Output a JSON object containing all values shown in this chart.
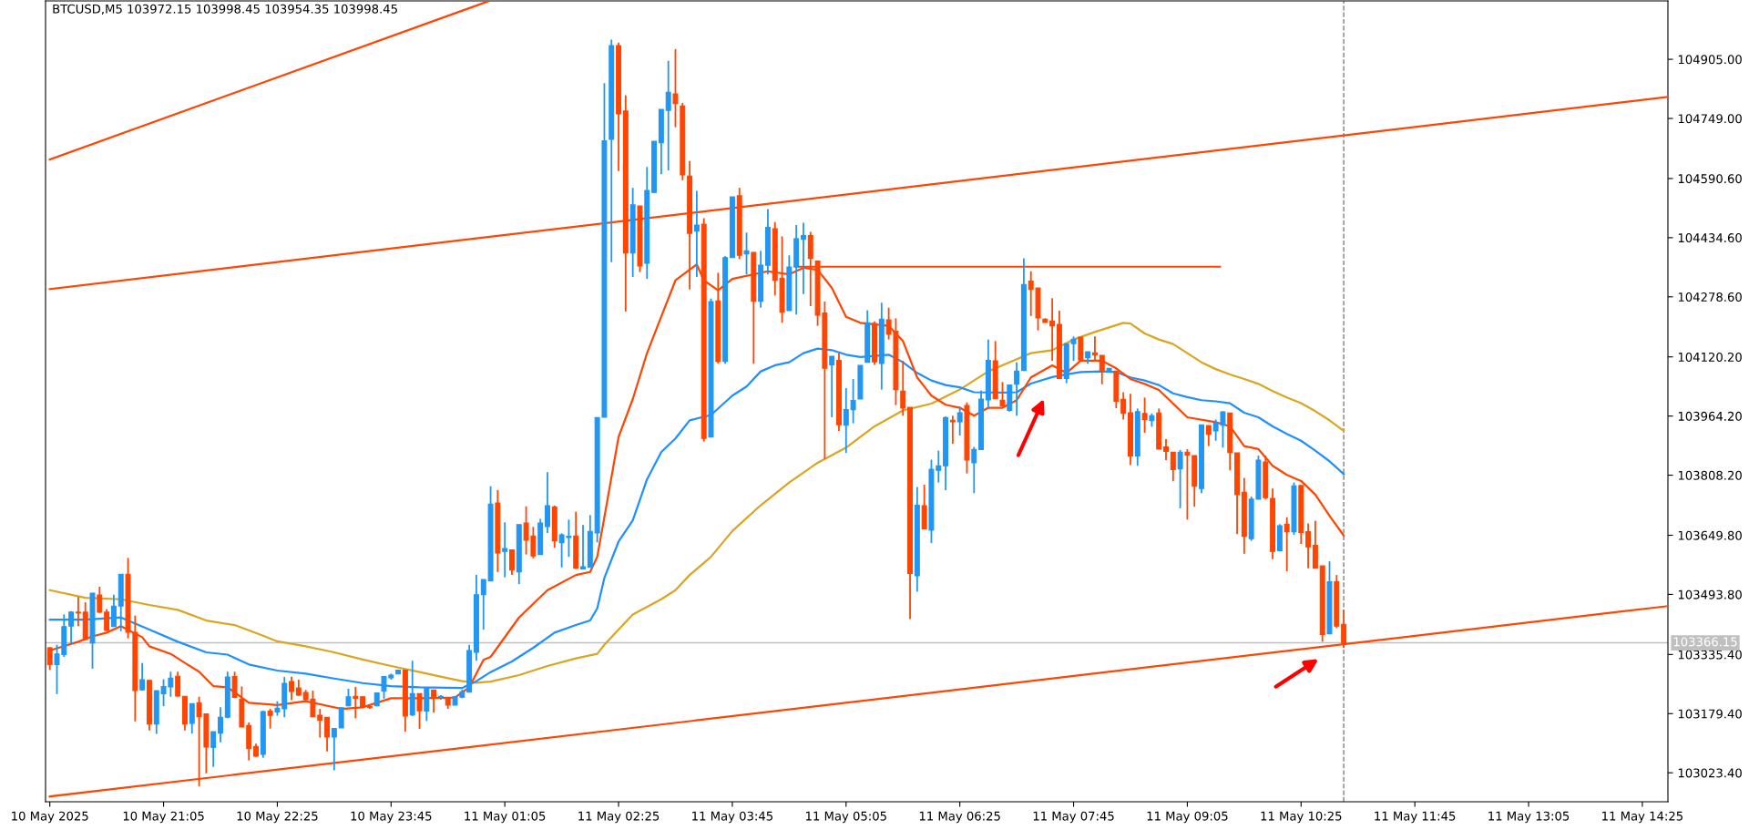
{
  "chart_data": {
    "type": "candlestick",
    "title": "BTCUSD,M5 103972.15 103998.45 103954.35 103998.45",
    "x": [
      "2025-05-10T19:45",
      "2025-05-10T19:50",
      "2025-05-10T19:55",
      "2025-05-10T20:00",
      "2025-05-10T20:05",
      "2025-05-10T20:10",
      "2025-05-10T20:15",
      "2025-05-10T20:20",
      "2025-05-10T20:25",
      "2025-05-10T20:30",
      "2025-05-10T20:35",
      "2025-05-10T20:40",
      "2025-05-10T20:45",
      "2025-05-10T20:50",
      "2025-05-10T20:55",
      "2025-05-10T21:00",
      "2025-05-10T21:05",
      "2025-05-10T21:10",
      "2025-05-10T21:15",
      "2025-05-10T21:20",
      "2025-05-10T21:25",
      "2025-05-10T21:30",
      "2025-05-10T21:35",
      "2025-05-10T21:40",
      "2025-05-10T21:45",
      "2025-05-10T21:50",
      "2025-05-10T21:55",
      "2025-05-10T22:00",
      "2025-05-10T22:05",
      "2025-05-10T22:10",
      "2025-05-10T22:15",
      "2025-05-10T22:20",
      "2025-05-10T22:25",
      "2025-05-10T22:30",
      "2025-05-10T22:35",
      "2025-05-10T22:40",
      "2025-05-10T22:45",
      "2025-05-10T22:50",
      "2025-05-10T22:55",
      "2025-05-10T23:00",
      "2025-05-10T23:05",
      "2025-05-10T23:10",
      "2025-05-10T23:15",
      "2025-05-10T23:20",
      "2025-05-10T23:25",
      "2025-05-10T23:30",
      "2025-05-10T23:35",
      "2025-05-10T23:40",
      "2025-05-10T23:45",
      "2025-05-10T23:50",
      "2025-05-10T23:55",
      "2025-05-11T00:00",
      "2025-05-11T00:05",
      "2025-05-11T00:10",
      "2025-05-11T00:15",
      "2025-05-11T00:20",
      "2025-05-11T00:25",
      "2025-05-11T00:30",
      "2025-05-11T00:35",
      "2025-05-11T00:40",
      "2025-05-11T00:45",
      "2025-05-11T00:50",
      "2025-05-11T00:55",
      "2025-05-11T01:00",
      "2025-05-11T01:05",
      "2025-05-11T01:10",
      "2025-05-11T01:15",
      "2025-05-11T01:20",
      "2025-05-11T01:25",
      "2025-05-11T01:30",
      "2025-05-11T01:35",
      "2025-05-11T01:40",
      "2025-05-11T01:45",
      "2025-05-11T01:50",
      "2025-05-11T01:55",
      "2025-05-11T02:00",
      "2025-05-11T02:05",
      "2025-05-11T02:10",
      "2025-05-11T02:15",
      "2025-05-11T02:20",
      "2025-05-11T02:25",
      "2025-05-11T02:30",
      "2025-05-11T02:35",
      "2025-05-11T02:40",
      "2025-05-11T02:45",
      "2025-05-11T02:50",
      "2025-05-11T02:55",
      "2025-05-11T03:00",
      "2025-05-11T03:05",
      "2025-05-11T03:10",
      "2025-05-11T03:15",
      "2025-05-11T03:20",
      "2025-05-11T03:25",
      "2025-05-11T03:30",
      "2025-05-11T03:35",
      "2025-05-11T03:40",
      "2025-05-11T03:45",
      "2025-05-11T03:50",
      "2025-05-11T03:55",
      "2025-05-11T04:00",
      "2025-05-11T04:05",
      "2025-05-11T04:10",
      "2025-05-11T04:15",
      "2025-05-11T04:20",
      "2025-05-11T04:25",
      "2025-05-11T04:30",
      "2025-05-11T04:35",
      "2025-05-11T04:40",
      "2025-05-11T04:45",
      "2025-05-11T04:50",
      "2025-05-11T04:55",
      "2025-05-11T05:00",
      "2025-05-11T05:05",
      "2025-05-11T05:10",
      "2025-05-11T05:15",
      "2025-05-11T05:20",
      "2025-05-11T05:25",
      "2025-05-11T05:30",
      "2025-05-11T05:35",
      "2025-05-11T05:40",
      "2025-05-11T05:45",
      "2025-05-11T05:50",
      "2025-05-11T05:55",
      "2025-05-11T06:00",
      "2025-05-11T06:05",
      "2025-05-11T06:10",
      "2025-05-11T06:15",
      "2025-05-11T06:20",
      "2025-05-11T06:25",
      "2025-05-11T06:30",
      "2025-05-11T06:35",
      "2025-05-11T06:40",
      "2025-05-11T06:45",
      "2025-05-11T06:50",
      "2025-05-11T06:55",
      "2025-05-11T07:00",
      "2025-05-11T07:05",
      "2025-05-11T07:10",
      "2025-05-11T07:15",
      "2025-05-11T07:20",
      "2025-05-11T07:25",
      "2025-05-11T07:30",
      "2025-05-11T07:35",
      "2025-05-11T07:40",
      "2025-05-11T07:45",
      "2025-05-11T07:50",
      "2025-05-11T07:55",
      "2025-05-11T08:00",
      "2025-05-11T08:05",
      "2025-05-11T08:10",
      "2025-05-11T08:15",
      "2025-05-11T08:20",
      "2025-05-11T08:25",
      "2025-05-11T08:30",
      "2025-05-11T08:35",
      "2025-05-11T08:40",
      "2025-05-11T08:45",
      "2025-05-11T08:50",
      "2025-05-11T08:55",
      "2025-05-11T09:00",
      "2025-05-11T09:05",
      "2025-05-11T09:10",
      "2025-05-11T09:15",
      "2025-05-11T09:20",
      "2025-05-11T09:25",
      "2025-05-11T09:30",
      "2025-05-11T09:35",
      "2025-05-11T09:40",
      "2025-05-11T09:45",
      "2025-05-11T09:50",
      "2025-05-11T09:55",
      "2025-05-11T10:00",
      "2025-05-11T10:05",
      "2025-05-11T10:10",
      "2025-05-11T10:15",
      "2025-05-11T10:20",
      "2025-05-11T10:25",
      "2025-05-11T10:30",
      "2025-05-11T10:35",
      "2025-05-11T10:40",
      "2025-05-11T10:45",
      "2025-05-11T10:50",
      "2025-05-11T10:55"
    ],
    "ohlc": [
      [
        103353,
        103355,
        103295,
        103309
      ],
      [
        103309,
        103361,
        103231,
        103337
      ],
      [
        103335,
        103441,
        103329,
        103409
      ],
      [
        103410,
        103450,
        103362,
        103447
      ],
      [
        103447,
        103487,
        103410,
        103445
      ],
      [
        103447,
        103473,
        103375,
        103375
      ],
      [
        103366,
        103497,
        103298,
        103497
      ],
      [
        103492,
        103514,
        103445,
        103447
      ],
      [
        103447,
        103455,
        103397,
        103399
      ],
      [
        103409,
        103493,
        103409,
        103463
      ],
      [
        103463,
        103547,
        103397,
        103547
      ],
      [
        103547,
        103590,
        103378,
        103394
      ],
      [
        103394,
        103438,
        103159,
        103240
      ],
      [
        103242,
        103313,
        103240,
        103269
      ],
      [
        103267,
        103267,
        103135,
        103152
      ],
      [
        103152,
        103240,
        103126,
        103240
      ],
      [
        103232,
        103270,
        103199,
        103251
      ],
      [
        103250,
        103290,
        103224,
        103273
      ],
      [
        103278,
        103290,
        103224,
        103226
      ],
      [
        103225,
        103225,
        103135,
        103152
      ],
      [
        103154,
        103206,
        103127,
        103206
      ],
      [
        103208,
        103224,
        102988,
        103171
      ],
      [
        103179,
        103179,
        103022,
        103091
      ],
      [
        103090,
        103132,
        103039,
        103132
      ],
      [
        103128,
        103196,
        103104,
        103170
      ],
      [
        103170,
        103290,
        103167,
        103276
      ],
      [
        103277,
        103290,
        103220,
        103222
      ],
      [
        103218,
        103251,
        103144,
        103144
      ],
      [
        103148,
        103156,
        103056,
        103087
      ],
      [
        103093,
        103100,
        103066,
        103067
      ],
      [
        103072,
        103187,
        103063,
        103185
      ],
      [
        103186,
        103192,
        103140,
        103175
      ],
      [
        103184,
        103212,
        103174,
        103194
      ],
      [
        103192,
        103276,
        103170,
        103259
      ],
      [
        103264,
        103277,
        103215,
        103238
      ],
      [
        103247,
        103269,
        103226,
        103228
      ],
      [
        103235,
        103242,
        103214,
        103216
      ],
      [
        103218,
        103240,
        103171,
        103171
      ],
      [
        103175,
        103192,
        103116,
        103162
      ],
      [
        103170,
        103170,
        103080,
        103118
      ],
      [
        103118,
        103140,
        103030,
        103140
      ],
      [
        103142,
        103195,
        103142,
        103195
      ],
      [
        103200,
        103245,
        103199,
        103224
      ],
      [
        103225,
        103250,
        103167,
        103220
      ],
      [
        103224,
        103224,
        103198,
        103198
      ],
      [
        103198,
        103204,
        103192,
        103195
      ],
      [
        103200,
        103234,
        103199,
        103234
      ],
      [
        103239,
        103277,
        103219,
        103277
      ],
      [
        103274,
        103285,
        103269,
        103281
      ],
      [
        103284,
        103294,
        103284,
        103294
      ],
      [
        103294,
        103294,
        103132,
        103173
      ],
      [
        103176,
        103319,
        103173,
        103232
      ],
      [
        103232,
        103232,
        103139,
        103187
      ],
      [
        103186,
        103247,
        103160,
        103247
      ],
      [
        103242,
        103242,
        103182,
        103222
      ],
      [
        103224,
        103228,
        103216,
        103225
      ],
      [
        103219,
        103219,
        103192,
        103202
      ],
      [
        103202,
        103226,
        103202,
        103224
      ],
      [
        103223,
        103243,
        103220,
        103237
      ],
      [
        103236,
        103361,
        103236,
        103346
      ],
      [
        103341,
        103545,
        103319,
        103493
      ],
      [
        103493,
        103533,
        103401,
        103533
      ],
      [
        103529,
        103779,
        103529,
        103732
      ],
      [
        103735,
        103769,
        103553,
        103603
      ],
      [
        103607,
        103684,
        103539,
        103615
      ],
      [
        103611,
        103611,
        103545,
        103558
      ],
      [
        103553,
        103678,
        103521,
        103678
      ],
      [
        103682,
        103726,
        103599,
        103637
      ],
      [
        103648,
        103672,
        103589,
        103595
      ],
      [
        103599,
        103693,
        103599,
        103682
      ],
      [
        103673,
        103816,
        103656,
        103728
      ],
      [
        103724,
        103728,
        103617,
        103635
      ],
      [
        103630,
        103655,
        103565,
        103651
      ],
      [
        103644,
        103691,
        103593,
        103647
      ],
      [
        103648,
        103712,
        103561,
        103563
      ],
      [
        103561,
        103677,
        103561,
        103567
      ],
      [
        103565,
        103703,
        103565,
        103660
      ],
      [
        103656,
        103960,
        103631,
        103960
      ],
      [
        103961,
        104842,
        103961,
        104690
      ],
      [
        104694,
        104957,
        104370,
        104941
      ],
      [
        104941,
        104949,
        104610,
        104761
      ],
      [
        104769,
        104810,
        104240,
        104394
      ],
      [
        104394,
        104566,
        104331,
        104521
      ],
      [
        104518,
        104518,
        104344,
        104360
      ],
      [
        104367,
        104621,
        104326,
        104559
      ],
      [
        104554,
        104689,
        104552,
        104689
      ],
      [
        104685,
        104773,
        104602,
        104773
      ],
      [
        104770,
        104901,
        104612,
        104818
      ],
      [
        104814,
        104932,
        104726,
        104788
      ],
      [
        104782,
        104790,
        104586,
        104600
      ],
      [
        104597,
        104637,
        104298,
        104446
      ],
      [
        104452,
        104558,
        104331,
        104468
      ],
      [
        104470,
        104486,
        103897,
        103905
      ],
      [
        103909,
        104274,
        103909,
        104266
      ],
      [
        104268,
        104342,
        104103,
        104108
      ],
      [
        104108,
        104386,
        104102,
        104382
      ],
      [
        104382,
        104542,
        104382,
        104542
      ],
      [
        104545,
        104566,
        104378,
        104388
      ],
      [
        104392,
        104448,
        104338,
        104400
      ],
      [
        104396,
        104396,
        104102,
        104267
      ],
      [
        104267,
        104400,
        104250,
        104362
      ],
      [
        104362,
        104510,
        104338,
        104462
      ],
      [
        104458,
        104476,
        104282,
        104322
      ],
      [
        104328,
        104438,
        104210,
        104238
      ],
      [
        104242,
        104388,
        104242,
        104357
      ],
      [
        104357,
        104468,
        104232,
        104432
      ],
      [
        104430,
        104474,
        104286,
        104440
      ],
      [
        104440,
        104450,
        104254,
        104380
      ],
      [
        104373,
        104373,
        104202,
        104230
      ],
      [
        104236,
        104266,
        103851,
        104090
      ],
      [
        104099,
        104122,
        103961,
        104122
      ],
      [
        104111,
        104130,
        103925,
        103941
      ],
      [
        103940,
        104038,
        103867,
        103981
      ],
      [
        103981,
        104062,
        103945,
        104005
      ],
      [
        104009,
        104098,
        104009,
        104098
      ],
      [
        104106,
        104243,
        104106,
        104210
      ],
      [
        104208,
        104214,
        104099,
        104107
      ],
      [
        104103,
        104263,
        104034,
        104220
      ],
      [
        104218,
        104250,
        104166,
        104180
      ],
      [
        104188,
        104222,
        103993,
        104034
      ],
      [
        104030,
        104110,
        103965,
        103985
      ],
      [
        103987,
        103987,
        103429,
        103549
      ],
      [
        103543,
        103777,
        103501,
        103729
      ],
      [
        103728,
        103783,
        103667,
        103667
      ],
      [
        103663,
        103849,
        103629,
        103824
      ],
      [
        103821,
        103873,
        103789,
        103833
      ],
      [
        103833,
        103963,
        103769,
        103960
      ],
      [
        103953,
        103965,
        103891,
        103949
      ],
      [
        103949,
        103989,
        103913,
        103973
      ],
      [
        103992,
        104000,
        103813,
        103848
      ],
      [
        103841,
        103883,
        103761,
        103876
      ],
      [
        103876,
        104032,
        103876,
        104009
      ],
      [
        104007,
        104166,
        103985,
        104111
      ],
      [
        104110,
        104162,
        104010,
        104010
      ],
      [
        104006,
        104054,
        103990,
        103991
      ],
      [
        103979,
        104046,
        103976,
        104046
      ],
      [
        104048,
        104106,
        103965,
        104083
      ],
      [
        104084,
        104380,
        104084,
        104311
      ],
      [
        104320,
        104346,
        104228,
        104298
      ],
      [
        104302,
        104302,
        104190,
        104223
      ],
      [
        104220,
        104222,
        104211,
        104211
      ],
      [
        104215,
        104275,
        104110,
        104202
      ],
      [
        104206,
        104242,
        104063,
        104063
      ],
      [
        104063,
        104155,
        104051,
        104155
      ],
      [
        104155,
        104174,
        104110,
        104167
      ],
      [
        104172,
        104172,
        104110,
        104112
      ],
      [
        104118,
        104134,
        104102,
        104134
      ],
      [
        104131,
        104174,
        104110,
        104125
      ],
      [
        104124,
        104124,
        104048,
        104082
      ],
      [
        104082,
        104091,
        104082,
        104090
      ],
      [
        104083,
        104083,
        103985,
        104003
      ],
      [
        104008,
        104027,
        103955,
        103971
      ],
      [
        103973,
        104023,
        103835,
        103859
      ],
      [
        103859,
        103984,
        103833,
        103976
      ],
      [
        103971,
        104013,
        103920,
        103955
      ],
      [
        103952,
        103971,
        103936,
        103965
      ],
      [
        103972,
        103984,
        103877,
        103877
      ],
      [
        103883,
        103903,
        103848,
        103871
      ],
      [
        103869,
        103869,
        103792,
        103823
      ],
      [
        103825,
        103875,
        103721,
        103869
      ],
      [
        103869,
        103877,
        103691,
        103861
      ],
      [
        103860,
        103860,
        103725,
        103779
      ],
      [
        103773,
        103941,
        103761,
        103941
      ],
      [
        103939,
        103939,
        103885,
        103916
      ],
      [
        103925,
        103955,
        103899,
        103945
      ],
      [
        103940,
        103977,
        103881,
        103975
      ],
      [
        103972,
        103972,
        103821,
        103868
      ],
      [
        103867,
        103867,
        103653,
        103757
      ],
      [
        103763,
        103801,
        103601,
        103647
      ],
      [
        103641,
        103752,
        103635,
        103745
      ],
      [
        103745,
        103860,
        103745,
        103848
      ],
      [
        103843,
        103860,
        103744,
        103749
      ],
      [
        103747,
        103773,
        103587,
        103607
      ],
      [
        103609,
        103679,
        103609,
        103675
      ],
      [
        103679,
        103697,
        103555,
        103659
      ],
      [
        103659,
        103789,
        103651,
        103780
      ],
      [
        103781,
        103781,
        103627,
        103657
      ],
      [
        103659,
        103681,
        103563,
        103619
      ],
      [
        103623,
        103688,
        103563,
        103563
      ],
      [
        103569,
        103569,
        103369,
        103388
      ],
      [
        103390,
        103581,
        103390,
        103527
      ],
      [
        103527,
        103545,
        103405,
        103410
      ],
      [
        103415,
        103453,
        103353,
        103366
      ]
    ],
    "colors": [
      "#ff4500",
      "#2196f3",
      "#2196f3",
      "#2196f3",
      "#ff4500",
      "#ff4500",
      "#2196f3",
      "#ff4500",
      "#ff4500",
      "#2196f3",
      "#2196f3",
      "#ff4500",
      "#ff4500",
      "#2196f3",
      "#ff4500",
      "#2196f3",
      "#2196f3",
      "#2196f3",
      "#ff4500",
      "#ff4500",
      "#2196f3",
      "#ff4500",
      "#ff4500",
      "#2196f3",
      "#2196f3",
      "#2196f3",
      "#ff4500",
      "#ff4500",
      "#ff4500",
      "#ff4500",
      "#2196f3",
      "#ff4500",
      "#2196f3",
      "#2196f3",
      "#ff4500",
      "#ff4500",
      "#ff4500",
      "#ff4500",
      "#ff4500",
      "#ff4500",
      "#2196f3",
      "#2196f3",
      "#2196f3",
      "#ff4500",
      "#ff4500",
      "#ff4500",
      "#2196f3",
      "#2196f3",
      "#2196f3",
      "#2196f3",
      "#ff4500",
      "#2196f3",
      "#ff4500",
      "#2196f3",
      "#ff4500",
      "#2196f3",
      "#ff4500",
      "#2196f3",
      "#2196f3",
      "#2196f3",
      "#2196f3",
      "#2196f3",
      "#2196f3",
      "#ff4500",
      "#2196f3",
      "#ff4500",
      "#2196f3",
      "#ff4500",
      "#ff4500",
      "#2196f3",
      "#2196f3",
      "#ff4500",
      "#2196f3",
      "#2196f3",
      "#ff4500",
      "#2196f3",
      "#2196f3",
      "#2196f3",
      "#2196f3",
      "#2196f3",
      "#ff4500",
      "#ff4500",
      "#2196f3",
      "#ff4500",
      "#2196f3",
      "#2196f3",
      "#2196f3",
      "#2196f3",
      "#ff4500",
      "#ff4500",
      "#ff4500",
      "#2196f3",
      "#ff4500",
      "#2196f3",
      "#ff4500",
      "#2196f3",
      "#2196f3",
      "#ff4500",
      "#2196f3",
      "#ff4500",
      "#2196f3",
      "#2196f3",
      "#ff4500",
      "#ff4500",
      "#2196f3",
      "#2196f3",
      "#2196f3",
      "#ff4500",
      "#ff4500",
      "#ff4500",
      "#2196f3",
      "#ff4500",
      "#2196f3",
      "#2196f3",
      "#2196f3",
      "#2196f3",
      "#ff4500",
      "#2196f3",
      "#ff4500",
      "#ff4500",
      "#ff4500",
      "#ff4500",
      "#2196f3",
      "#ff4500",
      "#2196f3",
      "#2196f3",
      "#2196f3",
      "#ff4500",
      "#2196f3",
      "#ff4500",
      "#2196f3",
      "#2196f3",
      "#2196f3",
      "#ff4500",
      "#ff4500",
      "#2196f3",
      "#2196f3",
      "#2196f3",
      "#ff4500",
      "#ff4500",
      "#ff4500",
      "#ff4500",
      "#ff4500",
      "#2196f3",
      "#2196f3",
      "#ff4500",
      "#2196f3",
      "#ff4500",
      "#ff4500",
      "#2196f3",
      "#ff4500",
      "#ff4500",
      "#ff4500",
      "#2196f3",
      "#ff4500",
      "#2196f3",
      "#ff4500",
      "#ff4500",
      "#ff4500",
      "#2196f3",
      "#ff4500",
      "#ff4500",
      "#2196f3",
      "#ff4500",
      "#2196f3",
      "#2196f3",
      "#ff4500",
      "#ff4500",
      "#ff4500",
      "#2196f3",
      "#2196f3",
      "#ff4500",
      "#ff4500",
      "#2196f3",
      "#ff4500",
      "#2196f3",
      "#ff4500",
      "#ff4500",
      "#ff4500",
      "#ff4500",
      "#2196f3",
      "#ff4500",
      "#ff4500"
    ],
    "series": [
      {
        "type": "line",
        "color": "#daa520",
        "x": [
          "2025-05-10T19:45",
          "2025-05-10T20:10",
          "2025-05-10T20:35",
          "2025-05-10T20:55",
          "2025-05-10T21:15",
          "2025-05-10T21:35",
          "2025-05-10T21:55",
          "2025-05-10T22:15",
          "2025-05-10T22:25",
          "2025-05-10T22:45",
          "2025-05-10T23:05",
          "2025-05-10T23:25",
          "2025-05-10T23:45",
          "2025-05-11T00:05",
          "2025-05-11T00:25",
          "2025-05-11T00:35",
          "2025-05-11T00:45",
          "2025-05-11T00:55",
          "2025-05-11T01:15",
          "2025-05-11T01:35",
          "2025-05-11T01:55",
          "2025-05-11T02:10",
          "2025-05-11T02:15",
          "2025-05-11T02:25",
          "2025-05-11T02:35",
          "2025-05-11T02:55",
          "2025-05-11T03:05",
          "2025-05-11T03:15",
          "2025-05-11T03:30",
          "2025-05-11T03:45",
          "2025-05-11T04:05",
          "2025-05-11T04:25",
          "2025-05-11T04:45",
          "2025-05-11T05:05",
          "2025-05-11T05:25",
          "2025-05-11T05:45",
          "2025-05-11T06:05",
          "2025-05-11T06:25",
          "2025-05-11T06:45",
          "2025-05-11T07:05",
          "2025-05-11T07:15",
          "2025-05-11T07:30",
          "2025-05-11T07:45",
          "2025-05-11T08:00",
          "2025-05-11T08:10",
          "2025-05-11T08:20",
          "2025-05-11T08:25",
          "2025-05-11T08:35",
          "2025-05-11T08:45",
          "2025-05-11T08:55",
          "2025-05-11T09:05",
          "2025-05-11T09:15",
          "2025-05-11T09:25",
          "2025-05-11T09:35",
          "2025-05-11T09:45",
          "2025-05-11T09:55",
          "2025-05-11T10:05",
          "2025-05-11T10:15",
          "2025-05-11T10:25",
          "2025-05-11T10:35",
          "2025-05-11T10:45",
          "2025-05-11T10:55"
        ],
        "values": [
          103505,
          103485,
          103481,
          103466,
          103453,
          103425,
          103413,
          103385,
          103370,
          103357,
          103341,
          103322,
          103305,
          103289,
          103273,
          103265,
          103261,
          103264,
          103281,
          103305,
          103325,
          103337,
          103361,
          103401,
          103441,
          103481,
          103505,
          103545,
          103593,
          103661,
          103729,
          103789,
          103841,
          103881,
          103937,
          103979,
          103997,
          104034,
          104082,
          104114,
          104130,
          104138,
          104166,
          104186,
          104198,
          104210,
          104208,
          104182,
          104166,
          104154,
          104130,
          104106,
          104088,
          104074,
          104062,
          104049,
          104030,
          104013,
          103998,
          103977,
          103953,
          103925
        ]
      },
      {
        "type": "line",
        "color": "#1e90ff",
        "x": [
          "2025-05-10T19:45",
          "2025-05-10T20:10",
          "2025-05-10T20:35",
          "2025-05-10T20:55",
          "2025-05-10T21:15",
          "2025-05-10T21:35",
          "2025-05-10T21:50",
          "2025-05-10T22:05",
          "2025-05-10T22:25",
          "2025-05-10T22:45",
          "2025-05-10T23:05",
          "2025-05-10T23:25",
          "2025-05-10T23:45",
          "2025-05-11T00:05",
          "2025-05-11T00:35",
          "2025-05-11T00:45",
          "2025-05-11T00:55",
          "2025-05-11T01:10",
          "2025-05-11T01:25",
          "2025-05-11T01:40",
          "2025-05-11T01:55",
          "2025-05-11T02:05",
          "2025-05-11T02:10",
          "2025-05-11T02:15",
          "2025-05-11T02:25",
          "2025-05-11T02:35",
          "2025-05-11T02:45",
          "2025-05-11T02:55",
          "2025-05-11T03:05",
          "2025-05-11T03:15",
          "2025-05-11T03:30",
          "2025-05-11T03:45",
          "2025-05-11T03:55",
          "2025-05-11T04:05",
          "2025-05-11T04:15",
          "2025-05-11T04:25",
          "2025-05-11T04:35",
          "2025-05-11T04:45",
          "2025-05-11T04:55",
          "2025-05-11T05:05",
          "2025-05-11T05:15",
          "2025-05-11T05:35",
          "2025-05-11T05:45",
          "2025-05-11T05:55",
          "2025-05-11T06:05",
          "2025-05-11T06:15",
          "2025-05-11T06:25",
          "2025-05-11T06:35",
          "2025-05-11T06:55",
          "2025-05-11T07:05",
          "2025-05-11T07:15",
          "2025-05-11T07:30",
          "2025-05-11T07:40",
          "2025-05-11T07:50",
          "2025-05-11T08:05",
          "2025-05-11T08:15",
          "2025-05-11T08:25",
          "2025-05-11T08:35",
          "2025-05-11T08:45",
          "2025-05-11T08:55",
          "2025-05-11T09:05",
          "2025-05-11T09:15",
          "2025-05-11T09:25",
          "2025-05-11T09:35",
          "2025-05-11T09:45",
          "2025-05-11T09:55",
          "2025-05-11T10:05",
          "2025-05-11T10:15",
          "2025-05-11T10:25",
          "2025-05-11T10:35",
          "2025-05-11T10:45",
          "2025-05-11T10:55"
        ],
        "values": [
          103427,
          103427,
          103433,
          103401,
          103369,
          103341,
          103335,
          103309,
          103293,
          103285,
          103272,
          103260,
          103252,
          103249,
          103247,
          103265,
          103289,
          103317,
          103353,
          103393,
          103413,
          103425,
          103457,
          103537,
          103633,
          103689,
          103797,
          103869,
          103905,
          103953,
          103967,
          104018,
          104042,
          104082,
          104098,
          104106,
          104130,
          104142,
          104138,
          104126,
          104120,
          104126,
          104106,
          104078,
          104058,
          104046,
          104040,
          104027,
          104026,
          104027,
          104050,
          104067,
          104074,
          104080,
          104082,
          104080,
          104066,
          104058,
          104046,
          104024,
          104014,
          104006,
          104003,
          103998,
          103973,
          103961,
          103937,
          103917,
          103899,
          103873,
          103845,
          103811
        ]
      },
      {
        "type": "line",
        "color": "#ff4500",
        "x": [
          "2025-05-10T19:45",
          "2025-05-10T20:05",
          "2025-05-10T20:15",
          "2025-05-10T20:25",
          "2025-05-10T20:35",
          "2025-05-10T20:50",
          "2025-05-10T20:55",
          "2025-05-10T21:10",
          "2025-05-10T21:20",
          "2025-05-10T21:30",
          "2025-05-10T21:40",
          "2025-05-10T21:50",
          "2025-05-10T22:05",
          "2025-05-10T22:25",
          "2025-05-10T22:45",
          "2025-05-10T23:10",
          "2025-05-10T23:25",
          "2025-05-10T23:45",
          "2025-05-11T00:05",
          "2025-05-11T00:30",
          "2025-05-11T00:40",
          "2025-05-11T00:50",
          "2025-05-11T00:55",
          "2025-05-11T01:15",
          "2025-05-11T01:35",
          "2025-05-11T01:55",
          "2025-05-11T02:05",
          "2025-05-11T02:10",
          "2025-05-11T02:15",
          "2025-05-11T02:25",
          "2025-05-11T02:35",
          "2025-05-11T02:45",
          "2025-05-11T02:55",
          "2025-05-11T03:05",
          "2025-05-11T03:20",
          "2025-05-11T03:25",
          "2025-05-11T03:35",
          "2025-05-11T03:45",
          "2025-05-11T04:10",
          "2025-05-11T04:25",
          "2025-05-11T04:35",
          "2025-05-11T04:45",
          "2025-05-11T04:55",
          "2025-05-11T05:05",
          "2025-05-11T05:15",
          "2025-05-11T05:35",
          "2025-05-11T05:45",
          "2025-05-11T05:55",
          "2025-05-11T06:05",
          "2025-05-11T06:15",
          "2025-05-11T06:25",
          "2025-05-11T06:35",
          "2025-05-11T06:45",
          "2025-05-11T06:55",
          "2025-05-11T07:05",
          "2025-05-11T07:15",
          "2025-05-11T07:30",
          "2025-05-11T07:40",
          "2025-05-11T07:50",
          "2025-05-11T08:05",
          "2025-05-11T08:15",
          "2025-05-11T08:25",
          "2025-05-11T08:35",
          "2025-05-11T08:45",
          "2025-05-11T08:55",
          "2025-05-11T09:05",
          "2025-05-11T09:25",
          "2025-05-11T09:35",
          "2025-05-11T09:45",
          "2025-05-11T09:55",
          "2025-05-11T10:05",
          "2025-05-11T10:15",
          "2025-05-11T10:25",
          "2025-05-11T10:35",
          "2025-05-11T10:45",
          "2025-05-11T10:55"
        ],
        "values": [
          103346,
          103369,
          103383,
          103393,
          103410,
          103381,
          103357,
          103337,
          103313,
          103290,
          103252,
          103249,
          103208,
          103202,
          103212,
          103192,
          103196,
          103220,
          103220,
          103222,
          103249,
          103321,
          103329,
          103433,
          103505,
          103545,
          103553,
          103593,
          103697,
          103909,
          104009,
          104130,
          104226,
          104322,
          104364,
          104322,
          104296,
          104326,
          104346,
          104338,
          104355,
          104350,
          104302,
          104226,
          104210,
          104202,
          104162,
          104066,
          104018,
          103994,
          103986,
          103965,
          103986,
          103986,
          104006,
          104066,
          104098,
          104078,
          104110,
          104110,
          104090,
          104062,
          104049,
          104033,
          103997,
          103961,
          103948,
          103937,
          103885,
          103877,
          103833,
          103809,
          103793,
          103757,
          103701,
          103649
        ]
      },
      {
        "type": "line",
        "color": "#ff4500",
        "x": [
          "2025-05-10T19:45",
          "2025-05-11T00:54"
        ],
        "values": [
          104641,
          105059
        ]
      },
      {
        "type": "line",
        "color": "#ff4500",
        "x": [
          "2025-05-10T19:45",
          "2025-05-11T14:43"
        ],
        "values": [
          104299,
          104806
        ]
      },
      {
        "type": "line",
        "color": "#ff4500",
        "x": [
          "2025-05-10T19:45",
          "2025-05-11T14:43"
        ],
        "values": [
          102961,
          103463
        ]
      },
      {
        "type": "line",
        "color": "#ff4500",
        "x": [
          "2025-05-11T04:30",
          "2025-05-11T09:28"
        ],
        "values": [
          104358,
          104358
        ]
      }
    ],
    "ref_lines": [
      {
        "axis": "y",
        "value": 103366.15,
        "label": "103366.15",
        "color": "#c0c0c0"
      },
      {
        "axis": "x",
        "value": "2025-05-11T10:55",
        "color": "#808080",
        "line_style": "dashed"
      }
    ],
    "xlim": [
      "2025-05-10T19:42",
      "2025-05-11T14:43"
    ],
    "ylim": [
      102947,
      105059
    ],
    "xticks": [
      {
        "value": "2025-05-10T19:45",
        "label": "10 May 2025"
      },
      {
        "value": "2025-05-10T21:05",
        "label": "10 May 21:05"
      },
      {
        "value": "2025-05-10T22:25",
        "label": "10 May 22:25"
      },
      {
        "value": "2025-05-10T23:45",
        "label": "10 May 23:45"
      },
      {
        "value": "2025-05-11T01:05",
        "label": "11 May 01:05"
      },
      {
        "value": "2025-05-11T02:25",
        "label": "11 May 02:25"
      },
      {
        "value": "2025-05-11T03:45",
        "label": "11 May 03:45"
      },
      {
        "value": "2025-05-11T05:05",
        "label": "11 May 05:05"
      },
      {
        "value": "2025-05-11T06:25",
        "label": "11 May 06:25"
      },
      {
        "value": "2025-05-11T07:45",
        "label": "11 May 07:45"
      },
      {
        "value": "2025-05-11T09:05",
        "label": "11 May 09:05"
      },
      {
        "value": "2025-05-11T10:25",
        "label": "11 May 10:25"
      },
      {
        "value": "2025-05-11T11:45",
        "label": "11 May 11:45"
      },
      {
        "value": "2025-05-11T13:05",
        "label": "11 May 13:05"
      },
      {
        "value": "2025-05-11T14:25",
        "label": "11 May 14:25"
      }
    ],
    "yticks": [
      {
        "value": 104905,
        "label": "104905.00"
      },
      {
        "value": 104749,
        "label": "104749.00"
      },
      {
        "value": 104590.6,
        "label": "104590.60"
      },
      {
        "value": 104434.6,
        "label": "104434.60"
      },
      {
        "value": 104278.6,
        "label": "104278.60"
      },
      {
        "value": 104120.2,
        "label": "104120.20"
      },
      {
        "value": 103964.2,
        "label": "103964.20"
      },
      {
        "value": 103808.2,
        "label": "103808.20"
      },
      {
        "value": 103649.8,
        "label": "103649.80"
      },
      {
        "value": 103493.8,
        "label": "103493.80"
      },
      {
        "value": 103335.4,
        "label": "103335.40"
      },
      {
        "value": 103179.4,
        "label": "103179.40"
      },
      {
        "value": 103023.4,
        "label": "103023.40"
      }
    ]
  }
}
